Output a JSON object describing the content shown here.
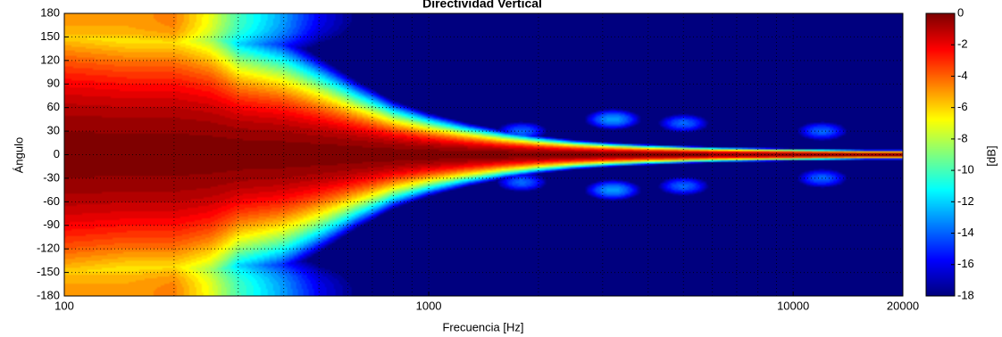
{
  "chart_data": {
    "type": "heatmap",
    "title": "Directividad Vertical",
    "xlabel": "Frecuencia [Hz]",
    "ylabel": "Ángulo",
    "colorbar_label": "[dB]",
    "x_scale": "log",
    "xlim": [
      100,
      20000
    ],
    "ylim": [
      -180,
      180
    ],
    "x_ticks": [
      100,
      1000,
      10000,
      20000
    ],
    "x_tick_labels": [
      "100",
      "1000",
      "10000",
      "20000"
    ],
    "y_ticks": [
      180,
      150,
      120,
      90,
      60,
      30,
      0,
      -30,
      -60,
      -90,
      -120,
      -150,
      -180
    ],
    "y_tick_labels": [
      "180",
      "150",
      "120",
      "90",
      "60",
      "30",
      "0",
      "-30",
      "-60",
      "-90",
      "-120",
      "-150",
      "-180"
    ],
    "colorbar_ticks": [
      0,
      -2,
      -4,
      -6,
      -8,
      -10,
      -12,
      -14,
      -16,
      -18
    ],
    "colorbar_tick_labels": [
      "0",
      "-2",
      "-4",
      "-6",
      "-8",
      "-10",
      "-12",
      "-14",
      "-16",
      "-18"
    ],
    "clim": [
      -18,
      0
    ],
    "colormap": "jet",
    "grid": true,
    "frequencies": [
      100,
      150,
      200,
      250,
      300,
      400,
      500,
      630,
      800,
      1000,
      1250,
      1600,
      2000,
      2500,
      3150,
      4000,
      5000,
      6300,
      8000,
      10000,
      12500,
      16000,
      20000
    ],
    "beamwidth_deg": [
      150,
      140,
      140,
      125,
      100,
      88,
      72,
      55,
      40,
      31,
      24,
      18,
      14,
      11,
      9,
      7.5,
      6.5,
      5.5,
      5,
      4.5,
      4,
      3.5,
      3.5
    ],
    "rear_level_db": [
      -5,
      -5,
      -4.5,
      -7,
      -10,
      -13,
      -16,
      -18,
      -18,
      -18,
      -18,
      -18,
      -18,
      -18,
      -18,
      -18,
      -18,
      -18,
      -18,
      -18,
      -18,
      -18,
      -18
    ],
    "side_lobes": [
      {
        "freq": 3200,
        "angle": 45,
        "level_db": -13
      },
      {
        "freq": 3200,
        "angle": -45,
        "level_db": -13
      },
      {
        "freq": 5000,
        "angle": 40,
        "level_db": -14
      },
      {
        "freq": 5000,
        "angle": -40,
        "level_db": -14
      },
      {
        "freq": 12000,
        "angle": 30,
        "level_db": -14
      },
      {
        "freq": 12000,
        "angle": -30,
        "level_db": -14
      },
      {
        "freq": 1800,
        "angle": 30,
        "level_db": -14
      },
      {
        "freq": 1800,
        "angle": -35,
        "level_db": -14
      }
    ]
  }
}
